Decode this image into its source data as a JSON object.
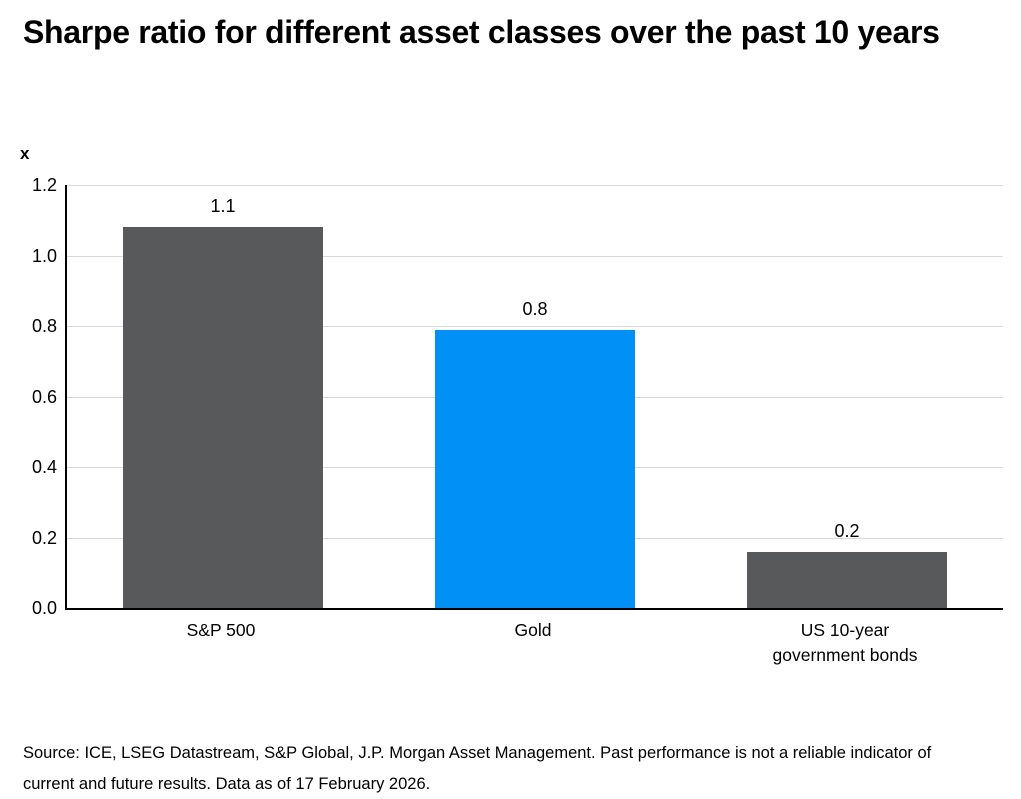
{
  "header": {
    "title": "Sharpe ratio for different asset classes over the past 10 years"
  },
  "chart_data": {
    "type": "bar",
    "title": "Sharpe ratio for different asset classes over the past 10 years",
    "unit_label": "x",
    "series_name": "Sharpe ratio",
    "categories": [
      "S&P 500",
      "Gold",
      "US 10-year government bonds"
    ],
    "values": [
      1.08,
      0.79,
      0.16
    ],
    "value_labels": [
      "1.1",
      "0.8",
      "0.2"
    ],
    "bar_colors": [
      "#57595b",
      "#0190f5",
      "#57595b"
    ],
    "ylim": [
      0,
      1.2
    ],
    "yticks": [
      0,
      0.2,
      0.4,
      0.6,
      0.8,
      1.0,
      1.2
    ],
    "ytick_labels": [
      "0.0",
      "0.2",
      "0.4",
      "0.6",
      "0.8",
      "1.0",
      "1.2"
    ],
    "grid": true,
    "legend": false,
    "colors": {
      "bar_default": "#57595b",
      "bar_highlight": "#0190f5",
      "gridline": "#d9d9d9",
      "axis": "#000000",
      "text": "#000000",
      "background": "#ffffff"
    }
  },
  "footer": {
    "source_lines": [
      "Source: ICE, LSEG Datastream, S&P Global, J.P. Morgan Asset Management. Past performance is not a reliable indicator of",
      "current and future results. Data as of 17 February 2026."
    ]
  }
}
